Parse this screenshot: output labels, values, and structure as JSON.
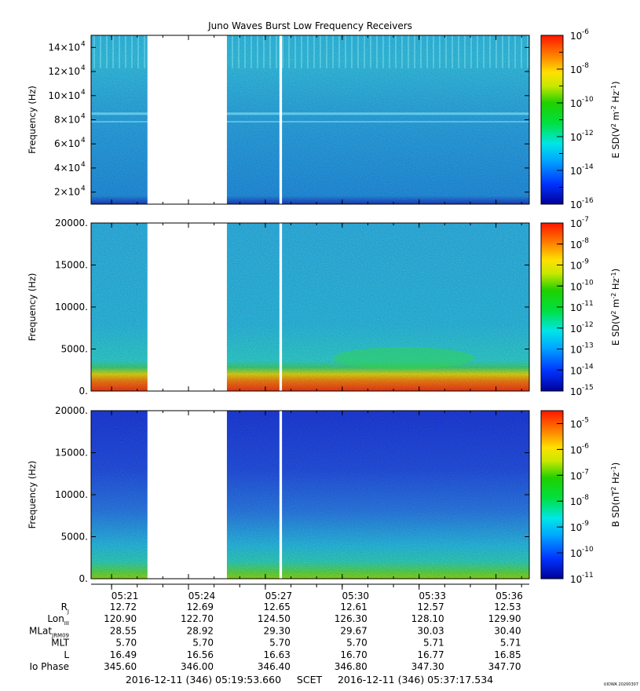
{
  "chart_data": {
    "type": "heatmap",
    "title": "Juno Waves Burst Low Frequency Receivers",
    "time_ticks": [
      "05:21",
      "05:24",
      "05:27",
      "05:30",
      "05:33",
      "05:36"
    ],
    "time_minutes": [
      21,
      24,
      27,
      30,
      33,
      36
    ],
    "time_range_minutes": [
      20.2,
      37.3
    ],
    "gaps_minutes": [
      [
        22.4,
        25.5
      ],
      [
        27.55,
        27.65
      ]
    ],
    "panels": [
      {
        "ylabel": "Frequency (Hz)",
        "ytick_mantissas": [
          "2×10",
          "4×10",
          "6×10",
          "8×10",
          "10×10",
          "12×10",
          "14×10"
        ],
        "ytick_exponent": "4",
        "yticks": [
          20000,
          40000,
          60000,
          80000,
          100000,
          120000,
          140000
        ],
        "ylim": [
          10000,
          150000
        ],
        "colorbar_label": "E SD(V",
        "colorbar_label_rest": "m",
        "colorbar_label_end": "Hz",
        "colorbar_ticks": [
          "-6",
          "-8",
          "-10",
          "-12",
          "-14",
          "-16"
        ],
        "colorbar_values": [
          -6,
          -8,
          -10,
          -12,
          -14,
          -16
        ],
        "colorbar_range": [
          -16,
          -6
        ]
      },
      {
        "ylabel": "Frequency (Hz)",
        "yticks_labels": [
          "0.",
          "5000.",
          "10000.",
          "15000.",
          "20000."
        ],
        "yticks": [
          0,
          5000,
          10000,
          15000,
          20000
        ],
        "ylim": [
          0,
          20000
        ],
        "colorbar_label": "E SD(V",
        "colorbar_label_rest": "m",
        "colorbar_label_end": "Hz",
        "colorbar_ticks": [
          "-7",
          "-8",
          "-9",
          "-10",
          "-11",
          "-12",
          "-13",
          "-14",
          "-15"
        ],
        "colorbar_values": [
          -7,
          -8,
          -9,
          -10,
          -11,
          -12,
          -13,
          -14,
          -15
        ],
        "colorbar_range": [
          -15,
          -7
        ]
      },
      {
        "ylabel": "Frequency (Hz)",
        "yticks_labels": [
          "0.",
          "5000.",
          "10000.",
          "15000.",
          "20000."
        ],
        "yticks": [
          0,
          5000,
          10000,
          15000,
          20000
        ],
        "ylim": [
          0,
          20000
        ],
        "colorbar_label": "B SD(nT",
        "colorbar_label_end": "Hz",
        "colorbar_ticks": [
          "-5",
          "-6",
          "-7",
          "-8",
          "-9",
          "-10",
          "-11"
        ],
        "colorbar_values": [
          -5,
          -6,
          -7,
          -8,
          -9,
          -10,
          -11
        ],
        "colorbar_range": [
          -11,
          -4.5
        ]
      }
    ],
    "ephemeris": {
      "rows": [
        {
          "label": "R",
          "sub": "J",
          "values": [
            "12.72",
            "12.69",
            "12.65",
            "12.61",
            "12.57",
            "12.53"
          ]
        },
        {
          "label": "Lon",
          "sub": "III",
          "values": [
            "120.90",
            "122.70",
            "124.50",
            "126.30",
            "128.10",
            "129.90"
          ]
        },
        {
          "label": "MLat",
          "sub": "JRM09",
          "values": [
            "28.55",
            "28.92",
            "29.30",
            "29.67",
            "30.03",
            "30.40"
          ]
        },
        {
          "label": "MLT",
          "sub": "",
          "values": [
            "5.70",
            "5.70",
            "5.70",
            "5.70",
            "5.71",
            "5.71"
          ]
        },
        {
          "label": "L",
          "sub": "",
          "values": [
            "16.49",
            "16.56",
            "16.63",
            "16.70",
            "16.77",
            "16.85"
          ]
        },
        {
          "label": "Io Phase",
          "sub": "",
          "values": [
            "345.60",
            "346.00",
            "346.40",
            "346.80",
            "347.30",
            "347.70"
          ]
        }
      ]
    },
    "time_range_text": "2016-12-11 (346) 05:19:53.660     SCET     2016-12-11 (346) 05:37:17.534",
    "footer_tag": "UIOWA 20200307"
  }
}
